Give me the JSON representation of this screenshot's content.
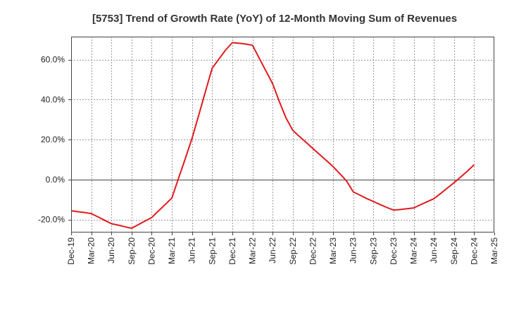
{
  "chart_data": {
    "type": "line",
    "title": "[5753]  Trend of Growth Rate (YoY) of 12-Month Moving Sum of Revenues",
    "xlabel": "",
    "ylabel": "",
    "x": [
      "Dec-19",
      "Mar-20",
      "Jun-20",
      "Sep-20",
      "Dec-20",
      "Mar-21",
      "Jun-21",
      "Sep-21",
      "Dec-21",
      "Mar-22",
      "Jun-22",
      "Sep-22",
      "Dec-22",
      "Mar-23",
      "Jun-23",
      "Sep-23",
      "Dec-23",
      "Mar-24",
      "Jun-24",
      "Sep-24",
      "Dec-24",
      "Mar-25"
    ],
    "ylim": [
      -26.5,
      71.5
    ],
    "yticks": [
      -20,
      0,
      20,
      40,
      60
    ],
    "ytick_labels": [
      "-20.0%",
      "0.0%",
      "20.0%",
      "40.0%",
      "60.0%"
    ],
    "grid": true,
    "series": [
      {
        "color": "#e31a1c",
        "values": [
          {
            "x": "Dec-19",
            "y": -15.6
          },
          {
            "x": "Jan-20",
            "y": -16.1
          },
          {
            "x": "Feb-20",
            "y": -16.5
          },
          {
            "x": "Mar-20",
            "y": -17.0
          },
          {
            "x": "Apr-20",
            "y": -18.7
          },
          {
            "x": "May-20",
            "y": -20.4
          },
          {
            "x": "Jun-20",
            "y": -22.1
          },
          {
            "x": "Jul-20",
            "y": -22.8
          },
          {
            "x": "Aug-20",
            "y": -23.6
          },
          {
            "x": "Sep-20",
            "y": -24.4
          },
          {
            "x": "Oct-20",
            "y": -22.6
          },
          {
            "x": "Nov-20",
            "y": -20.8
          },
          {
            "x": "Dec-20",
            "y": -19.0
          },
          {
            "x": "Jan-21",
            "y": -15.7
          },
          {
            "x": "Feb-21",
            "y": -12.5
          },
          {
            "x": "Mar-21",
            "y": -9.2
          },
          {
            "x": "Apr-21",
            "y": 0.7
          },
          {
            "x": "May-21",
            "y": 10.5
          },
          {
            "x": "Jun-21",
            "y": 20.6
          },
          {
            "x": "Jul-21",
            "y": 32.3
          },
          {
            "x": "Aug-21",
            "y": 44.1
          },
          {
            "x": "Sep-21",
            "y": 55.7
          },
          {
            "x": "Oct-21",
            "y": 60.3
          },
          {
            "x": "Nov-21",
            "y": 64.8
          },
          {
            "x": "Dec-21",
            "y": 68.5
          },
          {
            "x": "Jan-22",
            "y": 68.2
          },
          {
            "x": "Feb-22",
            "y": 67.8
          },
          {
            "x": "Mar-22",
            "y": 67.2
          },
          {
            "x": "Apr-22",
            "y": 60.7
          },
          {
            "x": "May-22",
            "y": 54.3
          },
          {
            "x": "Jun-22",
            "y": 47.9
          },
          {
            "x": "Jul-22",
            "y": 39.0
          },
          {
            "x": "Aug-22",
            "y": 30.7
          },
          {
            "x": "Sep-22",
            "y": 24.6
          },
          {
            "x": "Oct-22",
            "y": 21.5
          },
          {
            "x": "Nov-22",
            "y": 18.5
          },
          {
            "x": "Dec-22",
            "y": 15.5
          },
          {
            "x": "Jan-23",
            "y": 12.5
          },
          {
            "x": "Feb-23",
            "y": 9.5
          },
          {
            "x": "Mar-23",
            "y": 6.5
          },
          {
            "x": "Apr-23",
            "y": 2.9
          },
          {
            "x": "May-23",
            "y": -0.7
          },
          {
            "x": "Jun-23",
            "y": -6.2
          },
          {
            "x": "Jul-23",
            "y": -7.8
          },
          {
            "x": "Aug-23",
            "y": -9.5
          },
          {
            "x": "Sep-23",
            "y": -11.0
          },
          {
            "x": "Oct-23",
            "y": -12.5
          },
          {
            "x": "Nov-23",
            "y": -14.0
          },
          {
            "x": "Dec-23",
            "y": -15.3
          },
          {
            "x": "Jan-24",
            "y": -15.0
          },
          {
            "x": "Feb-24",
            "y": -14.6
          },
          {
            "x": "Mar-24",
            "y": -14.2
          },
          {
            "x": "Apr-24",
            "y": -12.6
          },
          {
            "x": "May-24",
            "y": -11.1
          },
          {
            "x": "Jun-24",
            "y": -9.6
          },
          {
            "x": "Jul-24",
            "y": -7.0
          },
          {
            "x": "Aug-24",
            "y": -4.3
          },
          {
            "x": "Sep-24",
            "y": -1.6
          },
          {
            "x": "Oct-24",
            "y": 1.3
          },
          {
            "x": "Nov-24",
            "y": 4.2
          },
          {
            "x": "Dec-24",
            "y": 7.4
          }
        ]
      }
    ]
  }
}
